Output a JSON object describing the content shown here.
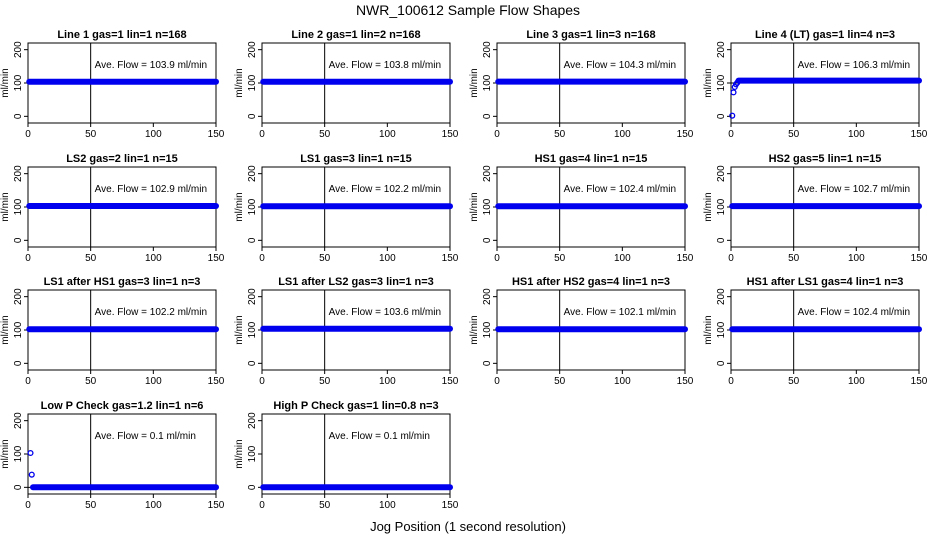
{
  "figure": {
    "title": "NWR_100612  Sample Flow Shapes",
    "xlabel": "Jog Position (1 second resolution)",
    "point_color": "#0000ee"
  },
  "chart_data": [
    {
      "type": "scatter",
      "title": "Line 1 gas=1 lin=1 n=168",
      "ylabel": "ml/min",
      "annotation": "Ave. Flow =  103.9  ml/min",
      "xlim": [
        0,
        150
      ],
      "ylim": [
        -20,
        220
      ],
      "xticks": [
        0,
        50,
        100,
        150
      ],
      "yticks": [
        0,
        100,
        200
      ],
      "vline": 50,
      "hline": 100,
      "series": [
        {
          "kind": "band",
          "x_start": 1,
          "x_end": 150,
          "y": 103.9
        }
      ]
    },
    {
      "type": "scatter",
      "title": "Line 2 gas=1 lin=2 n=168",
      "ylabel": "ml/min",
      "annotation": "Ave. Flow =  103.8  ml/min",
      "xlim": [
        0,
        150
      ],
      "ylim": [
        -20,
        220
      ],
      "xticks": [
        0,
        50,
        100,
        150
      ],
      "yticks": [
        0,
        100,
        200
      ],
      "vline": 50,
      "hline": 100,
      "series": [
        {
          "kind": "band",
          "x_start": 1,
          "x_end": 150,
          "y": 103.8
        }
      ]
    },
    {
      "type": "scatter",
      "title": "Line 3 gas=1 lin=3 n=168",
      "ylabel": "ml/min",
      "annotation": "Ave. Flow =  104.3  ml/min",
      "xlim": [
        0,
        150
      ],
      "ylim": [
        -20,
        220
      ],
      "xticks": [
        0,
        50,
        100,
        150
      ],
      "yticks": [
        0,
        100,
        200
      ],
      "vline": 50,
      "hline": 100,
      "series": [
        {
          "kind": "band",
          "x_start": 1,
          "x_end": 150,
          "y": 104.3
        }
      ]
    },
    {
      "type": "scatter",
      "title": "Line 4 (LT) gas=1 lin=4 n=3",
      "ylabel": "ml/min",
      "annotation": "Ave. Flow =  106.3  ml/min",
      "xlim": [
        0,
        150
      ],
      "ylim": [
        -20,
        220
      ],
      "xticks": [
        0,
        50,
        100,
        150
      ],
      "yticks": [
        0,
        100,
        200
      ],
      "vline": 50,
      "hline": 100,
      "series": [
        {
          "kind": "points",
          "x": [
            1,
            2,
            3,
            4,
            5
          ],
          "y": [
            2,
            72,
            88,
            96,
            101
          ]
        },
        {
          "kind": "band",
          "x_start": 6,
          "x_end": 150,
          "y": 107
        }
      ]
    },
    {
      "type": "scatter",
      "title": "LS2 gas=2 lin=1 n=15",
      "ylabel": "ml/min",
      "annotation": "Ave. Flow =  102.9  ml/min",
      "xlim": [
        0,
        150
      ],
      "ylim": [
        -20,
        220
      ],
      "xticks": [
        0,
        50,
        100,
        150
      ],
      "yticks": [
        0,
        100,
        200
      ],
      "vline": 50,
      "hline": 100,
      "series": [
        {
          "kind": "band",
          "x_start": 1,
          "x_end": 150,
          "y": 102.9
        }
      ]
    },
    {
      "type": "scatter",
      "title": "LS1 gas=3 lin=1 n=15",
      "ylabel": "ml/min",
      "annotation": "Ave. Flow =  102.2  ml/min",
      "xlim": [
        0,
        150
      ],
      "ylim": [
        -20,
        220
      ],
      "xticks": [
        0,
        50,
        100,
        150
      ],
      "yticks": [
        0,
        100,
        200
      ],
      "vline": 50,
      "hline": 100,
      "series": [
        {
          "kind": "band",
          "x_start": 1,
          "x_end": 150,
          "y": 102.2
        }
      ]
    },
    {
      "type": "scatter",
      "title": "HS1 gas=4 lin=1 n=15",
      "ylabel": "ml/min",
      "annotation": "Ave. Flow =  102.4  ml/min",
      "xlim": [
        0,
        150
      ],
      "ylim": [
        -20,
        220
      ],
      "xticks": [
        0,
        50,
        100,
        150
      ],
      "yticks": [
        0,
        100,
        200
      ],
      "vline": 50,
      "hline": 100,
      "series": [
        {
          "kind": "band",
          "x_start": 1,
          "x_end": 150,
          "y": 102.4
        }
      ]
    },
    {
      "type": "scatter",
      "title": "HS2 gas=5 lin=1 n=15",
      "ylabel": "ml/min",
      "annotation": "Ave. Flow =  102.7  ml/min",
      "xlim": [
        0,
        150
      ],
      "ylim": [
        -20,
        220
      ],
      "xticks": [
        0,
        50,
        100,
        150
      ],
      "yticks": [
        0,
        100,
        200
      ],
      "vline": 50,
      "hline": 100,
      "series": [
        {
          "kind": "band",
          "x_start": 1,
          "x_end": 150,
          "y": 102.7
        }
      ]
    },
    {
      "type": "scatter",
      "title": "LS1 after HS1 gas=3 lin=1 n=3",
      "ylabel": "ml/min",
      "annotation": "Ave. Flow =  102.2  ml/min",
      "xlim": [
        0,
        150
      ],
      "ylim": [
        -20,
        220
      ],
      "xticks": [
        0,
        50,
        100,
        150
      ],
      "yticks": [
        0,
        100,
        200
      ],
      "vline": 50,
      "hline": 100,
      "series": [
        {
          "kind": "band",
          "x_start": 1,
          "x_end": 150,
          "y": 102.2
        }
      ]
    },
    {
      "type": "scatter",
      "title": "LS1 after LS2 gas=3 lin=1 n=3",
      "ylabel": "ml/min",
      "annotation": "Ave. Flow =  103.6  ml/min",
      "xlim": [
        0,
        150
      ],
      "ylim": [
        -20,
        220
      ],
      "xticks": [
        0,
        50,
        100,
        150
      ],
      "yticks": [
        0,
        100,
        200
      ],
      "vline": 50,
      "hline": 100,
      "series": [
        {
          "kind": "band",
          "x_start": 1,
          "x_end": 150,
          "y": 103.6
        }
      ]
    },
    {
      "type": "scatter",
      "title": "HS1 after HS2 gas=4 lin=1 n=3",
      "ylabel": "ml/min",
      "annotation": "Ave. Flow =  102.1  ml/min",
      "xlim": [
        0,
        150
      ],
      "ylim": [
        -20,
        220
      ],
      "xticks": [
        0,
        50,
        100,
        150
      ],
      "yticks": [
        0,
        100,
        200
      ],
      "vline": 50,
      "hline": 100,
      "series": [
        {
          "kind": "band",
          "x_start": 1,
          "x_end": 150,
          "y": 102.1
        }
      ]
    },
    {
      "type": "scatter",
      "title": "HS1 after LS1 gas=4 lin=1 n=3",
      "ylabel": "ml/min",
      "annotation": "Ave. Flow =  102.4  ml/min",
      "xlim": [
        0,
        150
      ],
      "ylim": [
        -20,
        220
      ],
      "xticks": [
        0,
        50,
        100,
        150
      ],
      "yticks": [
        0,
        100,
        200
      ],
      "vline": 50,
      "hline": 100,
      "series": [
        {
          "kind": "band",
          "x_start": 1,
          "x_end": 150,
          "y": 102.4
        }
      ]
    },
    {
      "type": "scatter",
      "title": "Low P Check gas=1.2 lin=1 n=6",
      "ylabel": "ml/min",
      "annotation": "Ave. Flow =  0.1  ml/min",
      "xlim": [
        0,
        150
      ],
      "ylim": [
        -20,
        220
      ],
      "xticks": [
        0,
        50,
        100,
        150
      ],
      "yticks": [
        0,
        100,
        200
      ],
      "vline": 50,
      "hline": 0,
      "series": [
        {
          "kind": "points",
          "x": [
            2,
            3
          ],
          "y": [
            103,
            38
          ]
        },
        {
          "kind": "band",
          "x_start": 4,
          "x_end": 150,
          "y": 0.1
        }
      ]
    },
    {
      "type": "scatter",
      "title": "High P Check gas=1 lin=0.8 n=3",
      "ylabel": "ml/min",
      "annotation": "Ave. Flow =  0.1  ml/min",
      "xlim": [
        0,
        150
      ],
      "ylim": [
        -20,
        220
      ],
      "xticks": [
        0,
        50,
        100,
        150
      ],
      "yticks": [
        0,
        100,
        200
      ],
      "vline": 50,
      "hline": 0,
      "series": [
        {
          "kind": "band",
          "x_start": 1,
          "x_end": 150,
          "y": 0.1
        }
      ]
    }
  ]
}
